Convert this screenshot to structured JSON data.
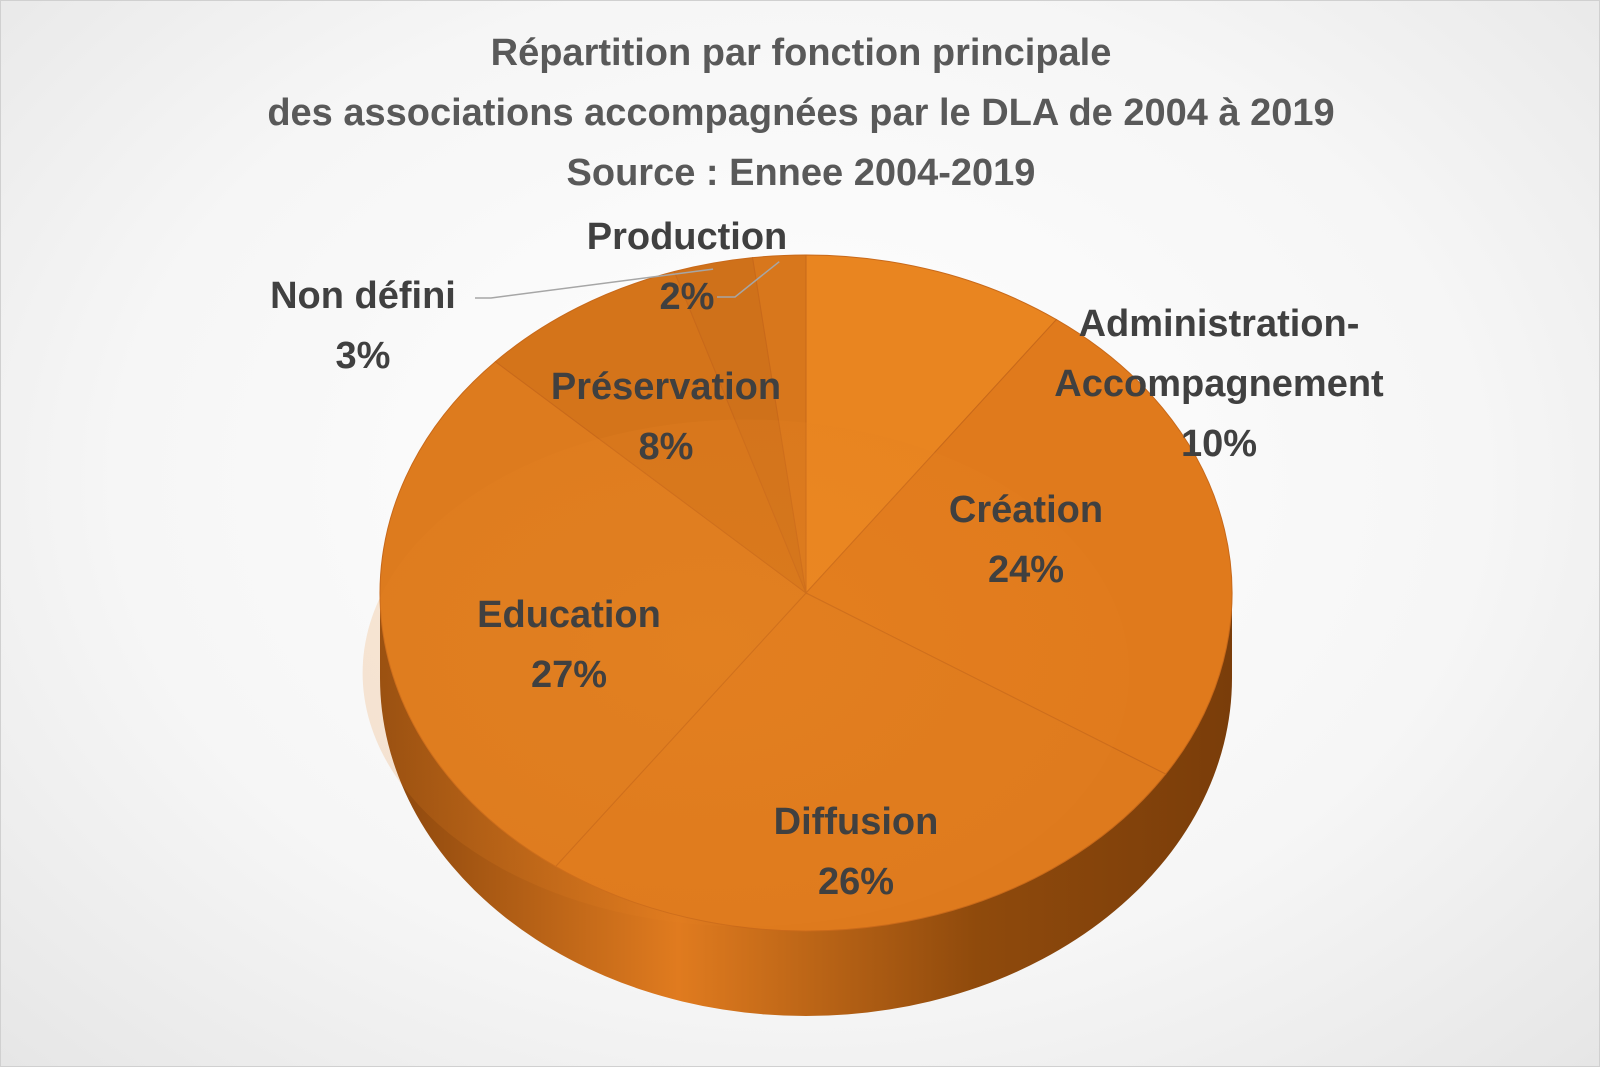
{
  "chart_data": {
    "type": "pie",
    "title_lines": [
      "Répartition par fonction principale",
      "des associations accompagnées par le DLA de 2004 à 2019",
      "Source : Ennee 2004-2019"
    ],
    "slices": [
      {
        "label_lines": [
          "Administration-",
          "Accompagnement"
        ],
        "value": 10,
        "value_label": "10%"
      },
      {
        "label_lines": [
          "Création"
        ],
        "value": 24,
        "value_label": "24%"
      },
      {
        "label_lines": [
          "Diffusion"
        ],
        "value": 26,
        "value_label": "26%"
      },
      {
        "label_lines": [
          "Education"
        ],
        "value": 27,
        "value_label": "27%"
      },
      {
        "label_lines": [
          "Préservation"
        ],
        "value": 8,
        "value_label": "8%"
      },
      {
        "label_lines": [
          "Non défini"
        ],
        "value": 3,
        "value_label": "3%"
      },
      {
        "label_lines": [
          "Production"
        ],
        "value": 2,
        "value_label": "2%"
      }
    ],
    "style": "3d",
    "colors": {
      "slice": "#e07b1f",
      "slice_light": "#f7962c",
      "slice_dark": "#b8620f",
      "side": "#7a3d0a",
      "label": "#404040",
      "title": "#595959"
    }
  }
}
